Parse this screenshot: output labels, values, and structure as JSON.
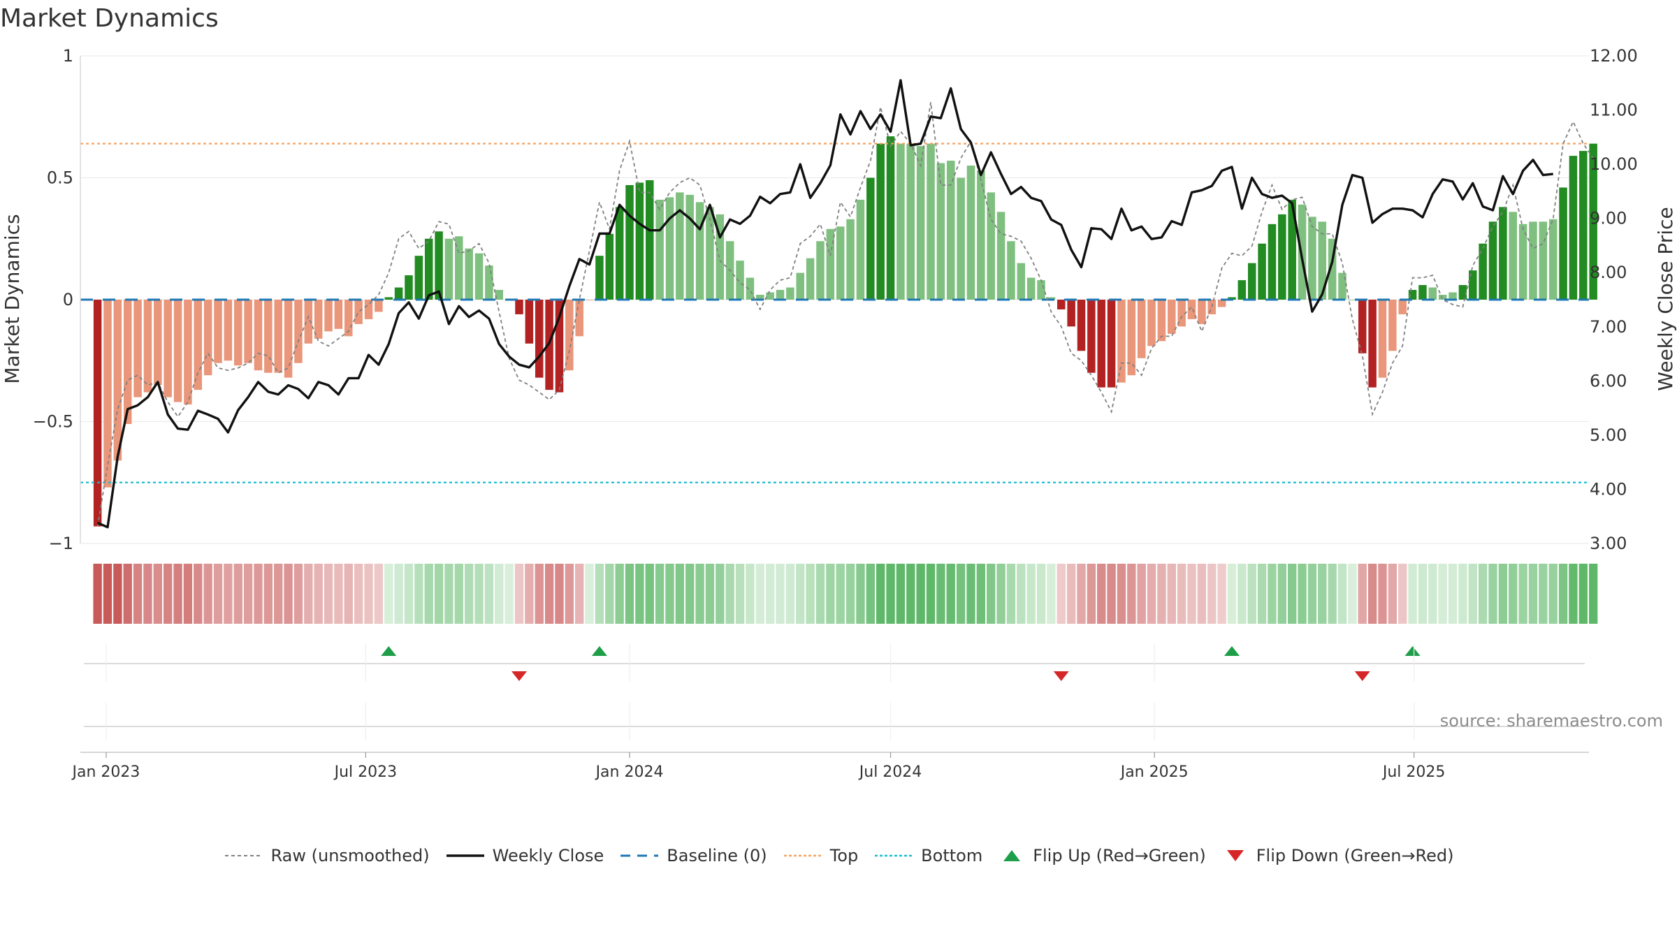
{
  "title": "Market Dynamics",
  "source": "source: sharemaestro.com",
  "colors": {
    "strong_green": "#228B22",
    "light_green": "#7FBF7F",
    "strong_red": "#B22222",
    "light_red": "#E9967A",
    "close_line": "#111111",
    "raw_line": "#808080",
    "baseline": "#1f77b4",
    "top": "#F4A261",
    "bottom": "#17BECF",
    "flip_up": "#1E9E48",
    "flip_down": "#D62728"
  },
  "legend": [
    {
      "key": "raw",
      "label": "Raw (unsmoothed)"
    },
    {
      "key": "close",
      "label": "Weekly Close"
    },
    {
      "key": "baseline",
      "label": "Baseline (0)"
    },
    {
      "key": "top",
      "label": "Top"
    },
    {
      "key": "bottom",
      "label": "Bottom"
    },
    {
      "key": "flip_up",
      "label": "Flip Up (Red→Green)"
    },
    {
      "key": "flip_down",
      "label": "Flip Down (Green→Red)"
    }
  ],
  "chart_data": {
    "type": "bar",
    "title": "Market Dynamics",
    "ylabel": "Market Dynamics",
    "y2label": "Weekly Close Price",
    "ylim": [
      -1,
      1
    ],
    "y2lim": [
      3.0,
      12.0
    ],
    "yticks": [
      1,
      0.5,
      0,
      -0.5,
      -1
    ],
    "ytick_labels": [
      "1",
      "0.5",
      "0",
      "−0.5",
      "−1"
    ],
    "y2ticks": [
      12,
      11,
      10,
      9,
      8,
      7,
      6,
      5,
      4,
      3
    ],
    "y2tick_labels": [
      "12.00",
      "11.00",
      "10.00",
      "9.00",
      "8.00",
      "7.00",
      "6.00",
      "5.00",
      "4.00",
      "3.00"
    ],
    "x_start": "2022-12-26",
    "x_step_days": 7,
    "x_end": "2025-10-27",
    "xtick_labels": [
      {
        "date": "2023-01-01",
        "label": "Jan 2023"
      },
      {
        "date": "2023-07-01",
        "label": "Jul 2023"
      },
      {
        "date": "2024-01-01",
        "label": "Jan 2024"
      },
      {
        "date": "2024-07-01",
        "label": "Jul 2024"
      },
      {
        "date": "2025-01-01",
        "label": "Jan 2025"
      },
      {
        "date": "2025-07-01",
        "label": "Jul 2025"
      }
    ],
    "top_level": 0.64,
    "bottom_level": -0.75,
    "baseline_level": 0,
    "grid": true,
    "legend_placement": "bottom-center",
    "dynamics": [
      -0.93,
      -0.77,
      -0.66,
      -0.51,
      -0.4,
      -0.38,
      -0.35,
      -0.4,
      -0.42,
      -0.43,
      -0.37,
      -0.31,
      -0.26,
      -0.25,
      -0.27,
      -0.26,
      -0.29,
      -0.3,
      -0.3,
      -0.32,
      -0.26,
      -0.18,
      -0.16,
      -0.13,
      -0.12,
      -0.15,
      -0.1,
      -0.08,
      -0.05,
      0.01,
      0.05,
      0.1,
      0.18,
      0.25,
      0.28,
      0.25,
      0.26,
      0.21,
      0.19,
      0.14,
      0.04,
      0.0,
      -0.06,
      -0.18,
      -0.32,
      -0.37,
      -0.38,
      -0.29,
      -0.15,
      0.0,
      0.18,
      0.27,
      0.38,
      0.47,
      0.48,
      0.49,
      0.41,
      0.42,
      0.44,
      0.43,
      0.4,
      0.38,
      0.35,
      0.24,
      0.16,
      0.09,
      0.02,
      0.03,
      0.04,
      0.05,
      0.11,
      0.17,
      0.24,
      0.29,
      0.3,
      0.33,
      0.41,
      0.5,
      0.64,
      0.67,
      0.64,
      0.64,
      0.63,
      0.64,
      0.56,
      0.57,
      0.5,
      0.55,
      0.53,
      0.44,
      0.36,
      0.24,
      0.15,
      0.09,
      0.08,
      0.01,
      -0.04,
      -0.11,
      -0.21,
      -0.3,
      -0.36,
      -0.36,
      -0.34,
      -0.31,
      -0.24,
      -0.19,
      -0.17,
      -0.14,
      -0.11,
      -0.08,
      -0.1,
      -0.06,
      -0.03,
      0.01,
      0.08,
      0.15,
      0.23,
      0.31,
      0.35,
      0.41,
      0.39,
      0.34,
      0.32,
      0.25,
      0.11,
      0.0,
      -0.22,
      -0.36,
      -0.32,
      -0.21,
      -0.06,
      0.04,
      0.06,
      0.05,
      0.02,
      0.03,
      0.06,
      0.12,
      0.23,
      0.32,
      0.38,
      0.36,
      0.31,
      0.32,
      0.32,
      0.33,
      0.46,
      0.59,
      0.61,
      0.64
    ],
    "raw": [
      -0.93,
      -0.68,
      -0.45,
      -0.33,
      -0.31,
      -0.35,
      -0.34,
      -0.42,
      -0.48,
      -0.42,
      -0.3,
      -0.22,
      -0.28,
      -0.29,
      -0.28,
      -0.26,
      -0.22,
      -0.23,
      -0.3,
      -0.28,
      -0.17,
      -0.07,
      -0.17,
      -0.19,
      -0.16,
      -0.13,
      -0.05,
      -0.02,
      0.02,
      0.11,
      0.25,
      0.28,
      0.21,
      0.24,
      0.32,
      0.31,
      0.19,
      0.2,
      0.23,
      0.15,
      -0.05,
      -0.24,
      -0.33,
      -0.35,
      -0.38,
      -0.41,
      -0.37,
      -0.21,
      0.0,
      0.2,
      0.4,
      0.29,
      0.53,
      0.65,
      0.44,
      0.44,
      0.37,
      0.44,
      0.48,
      0.5,
      0.47,
      0.33,
      0.16,
      0.12,
      0.07,
      0.04,
      -0.04,
      0.04,
      0.08,
      0.09,
      0.23,
      0.26,
      0.31,
      0.18,
      0.4,
      0.34,
      0.46,
      0.57,
      0.79,
      0.63,
      0.69,
      0.64,
      0.55,
      0.81,
      0.47,
      0.47,
      0.58,
      0.65,
      0.49,
      0.33,
      0.27,
      0.26,
      0.24,
      0.17,
      0.08,
      -0.05,
      -0.11,
      -0.22,
      -0.25,
      -0.31,
      -0.38,
      -0.46,
      -0.26,
      -0.26,
      -0.31,
      -0.2,
      -0.15,
      -0.15,
      -0.07,
      -0.03,
      -0.13,
      -0.03,
      0.13,
      0.19,
      0.18,
      0.22,
      0.36,
      0.47,
      0.37,
      0.41,
      0.42,
      0.3,
      0.27,
      0.27,
      0.15,
      -0.08,
      -0.23,
      -0.47,
      -0.38,
      -0.26,
      -0.19,
      0.09,
      0.09,
      0.1,
      0.0,
      -0.02,
      -0.03,
      0.14,
      0.21,
      0.3,
      0.36,
      0.47,
      0.29,
      0.21,
      0.23,
      0.33,
      0.64,
      0.73,
      0.64,
      0.58
    ],
    "close": [
      3.38,
      3.3,
      4.6,
      5.48,
      5.55,
      5.7,
      5.98,
      5.38,
      5.12,
      5.1,
      5.45,
      5.38,
      5.3,
      5.05,
      5.46,
      5.7,
      5.98,
      5.8,
      5.75,
      5.92,
      5.85,
      5.68,
      5.98,
      5.92,
      5.75,
      6.05,
      6.05,
      6.48,
      6.3,
      6.68,
      7.25,
      7.45,
      7.15,
      7.58,
      7.65,
      7.05,
      7.38,
      7.18,
      7.3,
      7.15,
      6.68,
      6.45,
      6.3,
      6.25,
      6.45,
      6.7,
      7.18,
      7.75,
      8.25,
      8.15,
      8.72,
      8.72,
      9.25,
      9.05,
      8.9,
      8.78,
      8.78,
      9.0,
      9.15,
      9.0,
      8.8,
      9.25,
      8.65,
      8.98,
      8.9,
      9.05,
      9.4,
      9.28,
      9.45,
      9.48,
      10.0,
      9.38,
      9.65,
      9.98,
      10.92,
      10.55,
      10.98,
      10.65,
      10.92,
      10.6,
      11.55,
      10.35,
      10.38,
      10.88,
      10.85,
      11.4,
      10.65,
      10.4,
      9.8,
      10.22,
      9.82,
      9.45,
      9.58,
      9.38,
      9.32,
      8.98,
      8.88,
      8.42,
      8.1,
      8.82,
      8.8,
      8.62,
      9.18,
      8.78,
      8.85,
      8.62,
      8.65,
      8.95,
      8.88,
      9.48,
      9.52,
      9.6,
      9.88,
      9.95,
      9.18,
      9.75,
      9.45,
      9.38,
      9.42,
      9.28,
      8.25,
      7.28,
      7.6,
      8.2,
      9.25,
      9.8,
      9.75,
      8.92,
      9.08,
      9.18,
      9.18,
      9.15,
      9.02,
      9.45,
      9.72,
      9.68,
      9.35,
      9.65,
      9.22,
      9.15,
      9.78,
      9.45,
      9.88,
      10.08,
      9.8,
      9.82
    ]
  }
}
